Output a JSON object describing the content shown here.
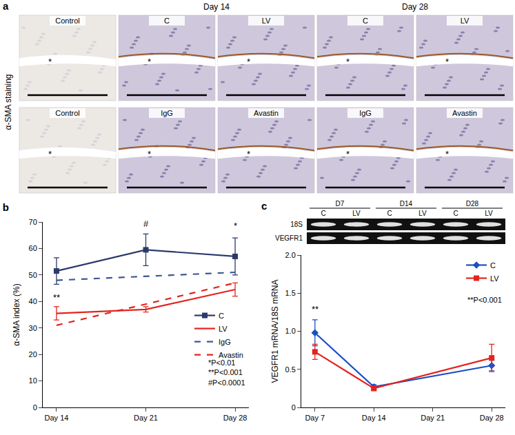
{
  "figure_a": {
    "label": "a",
    "row_title": "α-SMA staining",
    "lumen_mark": "*",
    "groups": [
      "Day 14",
      "Day 28"
    ],
    "rows": [
      [
        "Control",
        "C",
        "LV",
        "C",
        "LV"
      ],
      [
        "Control",
        "IgG",
        "Avastin",
        "IgG",
        "Avastin"
      ]
    ]
  },
  "gel": {
    "days": [
      "D7",
      "D14",
      "D28"
    ],
    "lanes": [
      "C",
      "LV",
      "C",
      "LV",
      "C",
      "LV"
    ],
    "bands": [
      "18S",
      "VEGFR1"
    ]
  },
  "chart_data": [
    {
      "type": "line",
      "title": "b",
      "categories": [
        "Day 14",
        "Day 21",
        "Day 28"
      ],
      "y_label": "α-SMA index (%)",
      "ylim": [
        0,
        70
      ],
      "yticks": [
        0,
        10,
        20,
        30,
        40,
        50,
        60,
        70
      ],
      "grid": false,
      "legend": "lower right",
      "series": [
        {
          "name": "C",
          "color": "#2b3a6b",
          "line_style": "solid",
          "marker": "square",
          "values": [
            51.5,
            59.5,
            57
          ],
          "errors": [
            5,
            6,
            7
          ]
        },
        {
          "name": "LV",
          "color": "#e3231e",
          "line_style": "solid",
          "marker": "none",
          "values": [
            35.5,
            37,
            44.5
          ],
          "errors": [
            2.5,
            1,
            2.5
          ]
        },
        {
          "name": "IgG",
          "color": "#3b5894",
          "line_style": "dash",
          "marker": "none",
          "values": [
            48,
            null,
            51
          ]
        },
        {
          "name": "Avastin",
          "color": "#e3231e",
          "line_style": "dash",
          "marker": "none",
          "values": [
            31,
            null,
            47
          ]
        }
      ],
      "annotations": [
        {
          "text": "**",
          "x": "Day 14",
          "y": 39
        },
        {
          "text": "#",
          "x": "Day 21",
          "y": 67
        },
        {
          "text": "*",
          "x": "Day 28",
          "y": 66
        }
      ],
      "notes": [
        "*P<0.01",
        "**P<0.001",
        "#P<0.0001"
      ]
    },
    {
      "type": "line",
      "title": "c",
      "categories": [
        "Day 7",
        "Day 14",
        "Day 21",
        "Day 28"
      ],
      "y_label": "VEGFR1 mRNA/18S mRNA",
      "ylim": [
        0,
        2
      ],
      "yticks": [
        0,
        0.5,
        {
          "value": 1,
          "label": "1.0"
        },
        1.5,
        {
          "value": 2,
          "label": "2.0"
        }
      ],
      "grid": false,
      "legend": "upper right",
      "series": [
        {
          "name": "C",
          "color": "#1a4fc4",
          "line_style": "solid",
          "marker": "diamond",
          "values": [
            0.98,
            0.27,
            null,
            0.55
          ],
          "errors": [
            0.17,
            0.03,
            null,
            0.07
          ]
        },
        {
          "name": "LV",
          "color": "#e3231e",
          "line_style": "solid",
          "marker": "square",
          "values": [
            0.73,
            0.25,
            null,
            0.65
          ],
          "errors": [
            0.1,
            0.03,
            null,
            0.18
          ]
        }
      ],
      "annotations": [
        {
          "text": "**",
          "x": "Day 7",
          "y": 1.2
        }
      ],
      "notes": [
        "**P<0.001"
      ]
    }
  ]
}
